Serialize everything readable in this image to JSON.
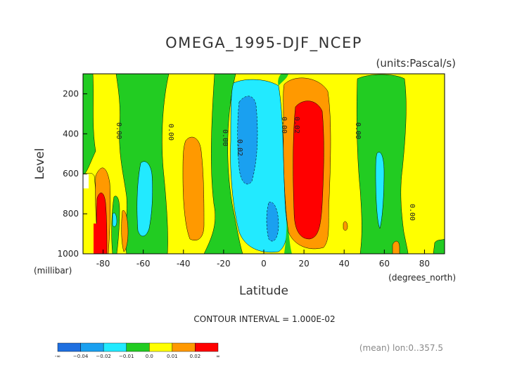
{
  "chart_data": {
    "type": "heatmap",
    "title": "OMEGA_1995-DJF_NCEP",
    "units_label": "(units:Pascal/s)",
    "xlabel": "Latitude",
    "xunit_label": "(degrees_north)",
    "ylabel": "Level",
    "yunit_label": "(millibar)",
    "xlim": [
      -90,
      90
    ],
    "ylim": [
      1000,
      100
    ],
    "x_ticks": [
      "-80",
      "-60",
      "-40",
      "-20",
      "0",
      "20",
      "40",
      "60",
      "80"
    ],
    "y_ticks": [
      "200",
      "400",
      "600",
      "800",
      "1000"
    ],
    "contour_interval_label": "CONTOUR INTERVAL = 1.000E-02",
    "mean_label": "(mean) lon:0..357.5",
    "contour_labels": [
      "0.00",
      "0.00",
      "0.00",
      "0.02",
      "0.00",
      "0.02",
      "0.00",
      "0.00"
    ],
    "colorbar": {
      "labels": [
        "-∞",
        "−0.04",
        "−0.02",
        "−0.01",
        "0.0",
        "0.01",
        "0.02",
        "∞"
      ],
      "colors": [
        "#1f6fe0",
        "#1aa0f0",
        "#22eaff",
        "#22cc22",
        "#ffff00",
        "#ff9900",
        "#ff0000"
      ]
    },
    "colors": {
      "level_neg_0_04": "#1f6fe0",
      "level_neg_0_02": "#1aa0f0",
      "level_neg_0_01": "#22eaff",
      "level_0": "#22cc22",
      "level_0_01": "#ffff00",
      "level_0_02": "#ff9900",
      "level_max": "#ff0000"
    }
  }
}
